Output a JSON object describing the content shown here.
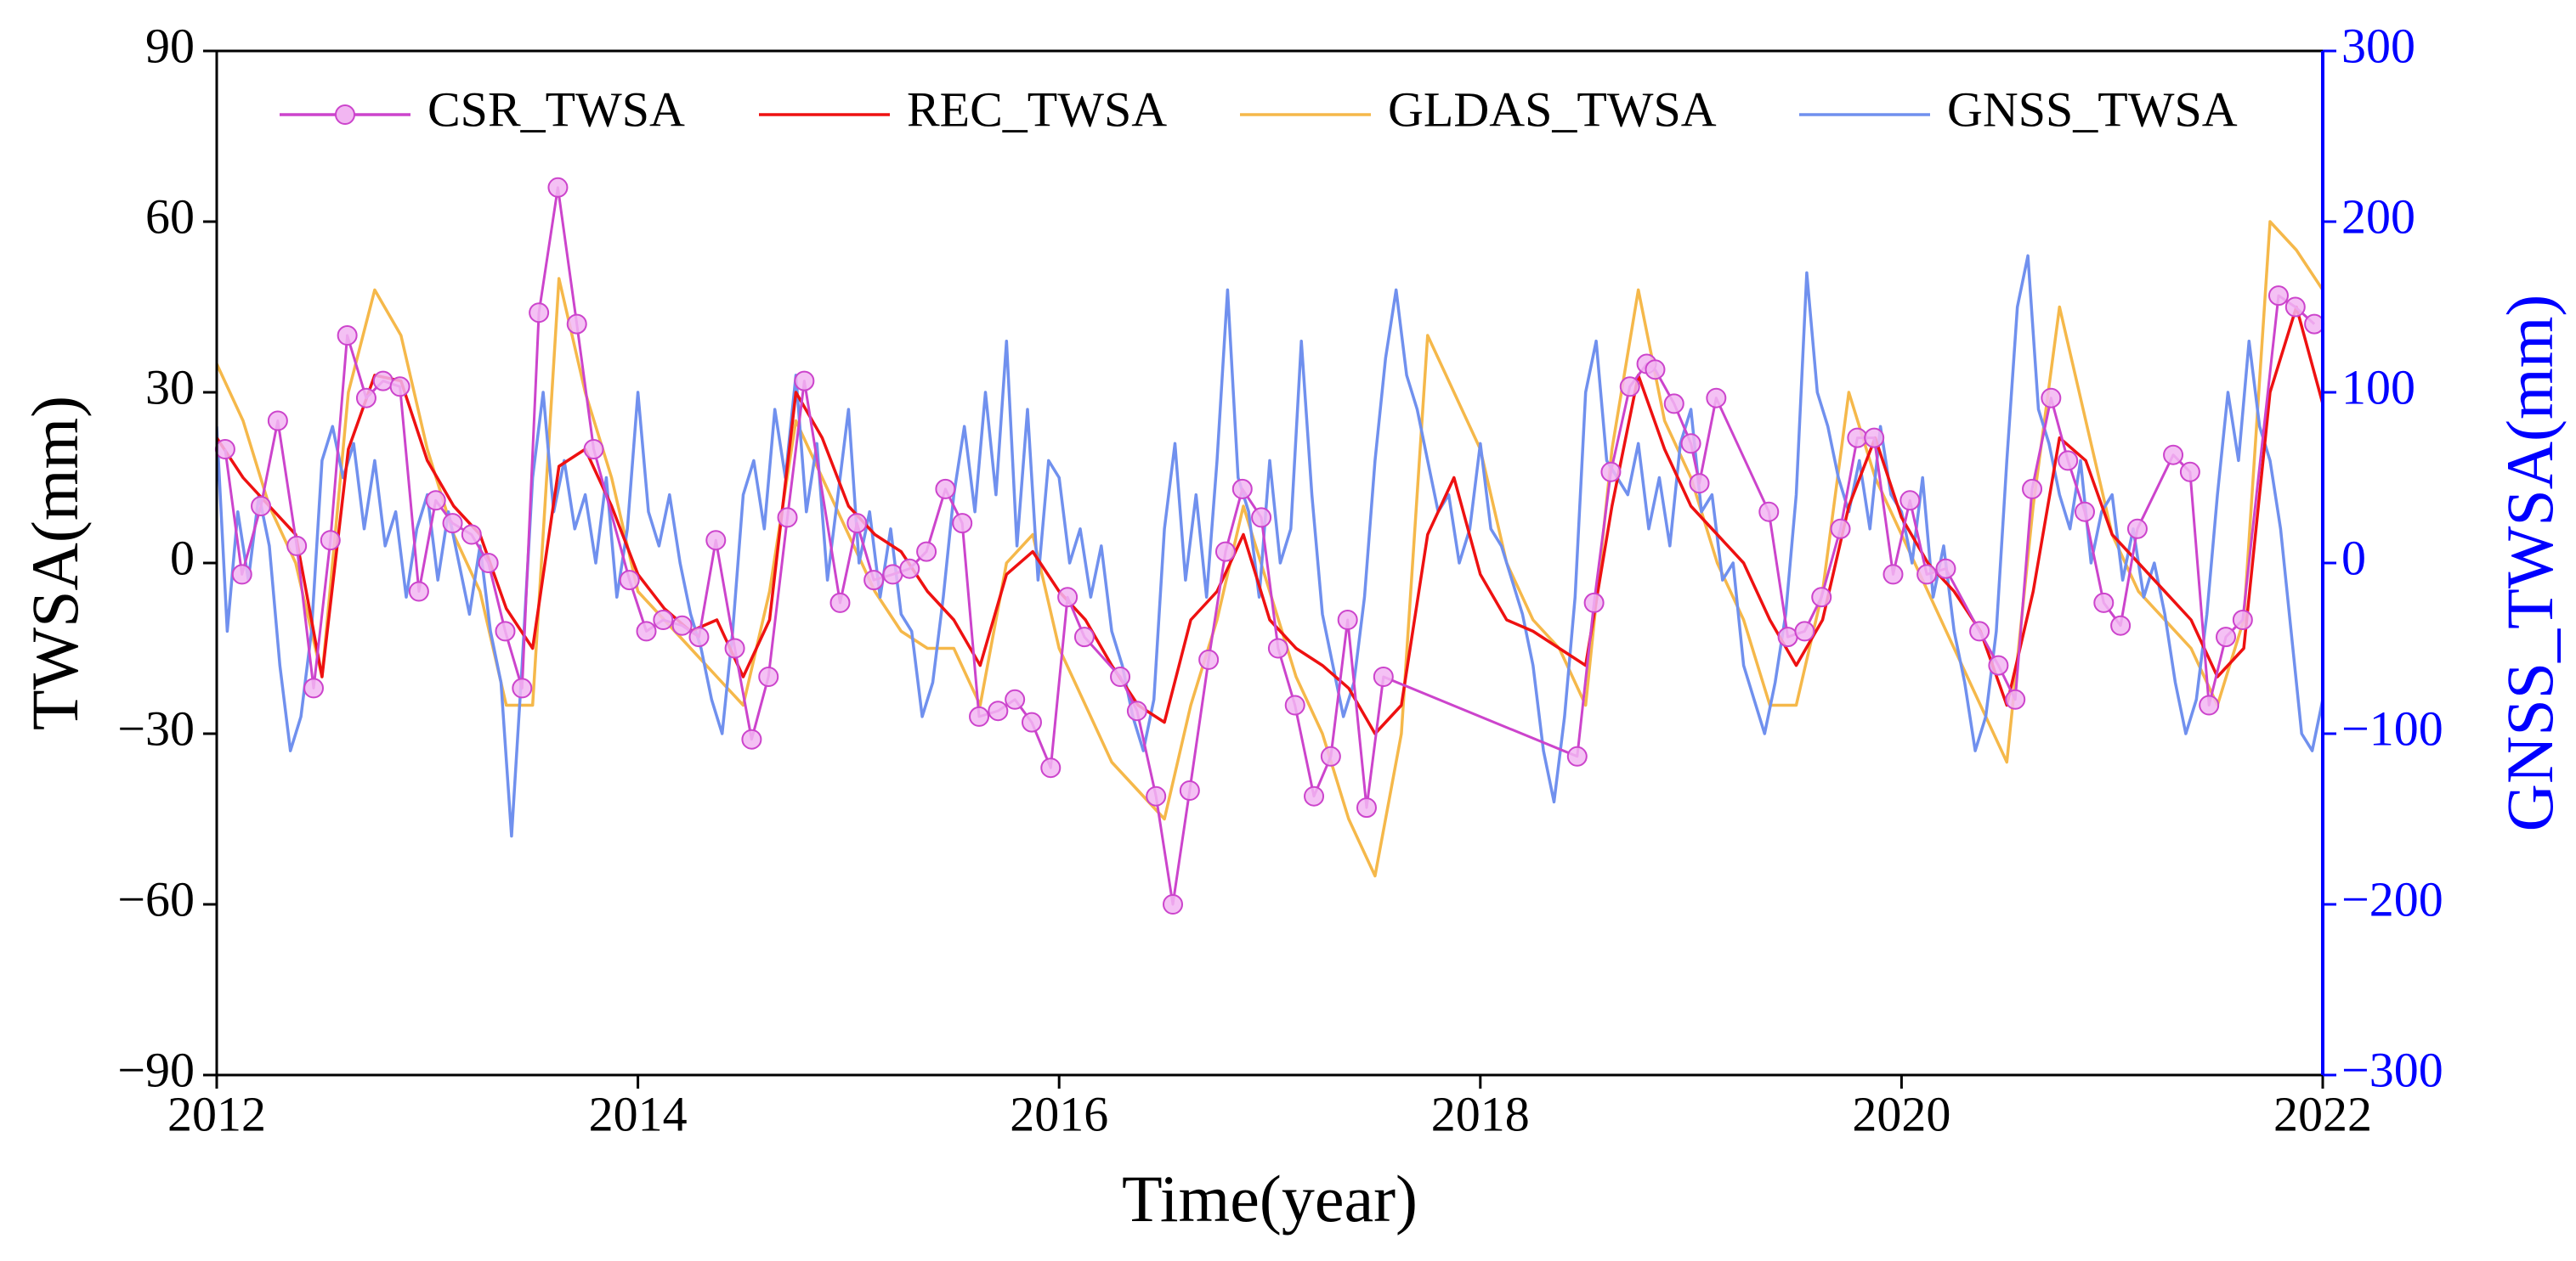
{
  "chart_data": {
    "type": "line",
    "xlabel": "Time(year)",
    "ylabel": "TWSA(mm)",
    "y2label": "GNSS_TWSA(mm)",
    "xlim": [
      2012,
      2022
    ],
    "xticks": [
      2012,
      2014,
      2016,
      2018,
      2020,
      2022
    ],
    "ylim": [
      -90,
      90
    ],
    "yticks": [
      {
        "value": -90,
        "label": "−90"
      },
      {
        "value": -60,
        "label": "−60"
      },
      {
        "value": -30,
        "label": "−30"
      },
      0,
      30,
      60,
      90
    ],
    "y2lim": [
      -300,
      300
    ],
    "y2ticks": [
      {
        "value": -300,
        "label": "−300"
      },
      {
        "value": -200,
        "label": "−200"
      },
      {
        "value": -100,
        "label": "−100"
      },
      0,
      100,
      200,
      300
    ],
    "y2color": "#0000ff",
    "legend": "top",
    "series": [
      {
        "name": "CSR_TWSA",
        "color": "#cc44cc",
        "marker": "circle",
        "marker_fill": "#f2b6f2",
        "x": [
          2012.04,
          2012.12,
          2012.21,
          2012.29,
          2012.38,
          2012.46,
          2012.54,
          2012.62,
          2012.71,
          2012.79,
          2012.87,
          2012.96,
          2013.04,
          2013.12,
          2013.21,
          2013.29,
          2013.37,
          2013.45,
          2013.53,
          2013.62,
          2013.71,
          2013.79,
          2013.96,
          2014.04,
          2014.12,
          2014.21,
          2014.29,
          2014.37,
          2014.46,
          2014.54,
          2014.62,
          2014.71,
          2014.79,
          2014.96,
          2015.04,
          2015.12,
          2015.21,
          2015.29,
          2015.37,
          2015.46,
          2015.54,
          2015.62,
          2015.71,
          2015.79,
          2015.87,
          2015.96,
          2016.04,
          2016.12,
          2016.29,
          2016.37,
          2016.46,
          2016.54,
          2016.62,
          2016.71,
          2016.79,
          2016.87,
          2016.96,
          2017.04,
          2017.12,
          2017.21,
          2017.29,
          2017.37,
          2017.46,
          2017.54,
          2018.46,
          2018.54,
          2018.62,
          2018.71,
          2018.79,
          2018.83,
          2018.92,
          2019.0,
          2019.04,
          2019.12,
          2019.37,
          2019.46,
          2019.54,
          2019.62,
          2019.71,
          2019.79,
          2019.87,
          2019.96,
          2020.04,
          2020.12,
          2020.21,
          2020.37,
          2020.46,
          2020.54,
          2020.62,
          2020.71,
          2020.79,
          2020.87,
          2020.96,
          2021.04,
          2021.12,
          2021.29,
          2021.37,
          2021.46,
          2021.54,
          2021.62,
          2021.79,
          2021.87,
          2021.96
        ],
        "values": [
          20,
          -2,
          10,
          25,
          3,
          -22,
          4,
          40,
          29,
          32,
          31,
          -5,
          11,
          7,
          5,
          0,
          -12,
          -22,
          44,
          66,
          42,
          20,
          -3,
          -12,
          -10,
          -11,
          -13,
          4,
          -15,
          -31,
          -20,
          8,
          32,
          -7,
          7,
          -3,
          -2,
          -1,
          2,
          13,
          7,
          -27,
          -26,
          -24,
          -28,
          -36,
          -6,
          -13,
          -20,
          -26,
          -41,
          -60,
          -40,
          -17,
          2,
          13,
          8,
          -15,
          -25,
          -41,
          -34,
          -10,
          -43,
          -20,
          -34,
          -7,
          16,
          31,
          35,
          34,
          28,
          21,
          14,
          29,
          9,
          -13,
          -12,
          -6,
          6,
          22,
          22,
          -2,
          11,
          -2,
          -1,
          -12,
          -18,
          -24,
          13,
          29,
          18,
          9,
          -7,
          -11,
          6,
          19,
          16,
          -25,
          -13,
          -10,
          47,
          45,
          42
        ]
      },
      {
        "name": "REC_TWSA",
        "color": "#ee1111",
        "x": [
          2012,
          2012.125,
          2012.25,
          2012.375,
          2012.5,
          2012.625,
          2012.75,
          2012.875,
          2013,
          2013.125,
          2013.25,
          2013.375,
          2013.5,
          2013.625,
          2013.75,
          2013.875,
          2014,
          2014.125,
          2014.25,
          2014.375,
          2014.5,
          2014.625,
          2014.75,
          2014.875,
          2015,
          2015.125,
          2015.25,
          2015.375,
          2015.5,
          2015.625,
          2015.75,
          2015.875,
          2016,
          2016.125,
          2016.25,
          2016.375,
          2016.5,
          2016.625,
          2016.75,
          2016.875,
          2017,
          2017.125,
          2017.25,
          2017.375,
          2017.5,
          2017.625,
          2017.75,
          2017.875,
          2018,
          2018.125,
          2018.25,
          2018.375,
          2018.5,
          2018.625,
          2018.75,
          2018.875,
          2019,
          2019.125,
          2019.25,
          2019.375,
          2019.5,
          2019.625,
          2019.75,
          2019.875,
          2020,
          2020.125,
          2020.25,
          2020.375,
          2020.5,
          2020.625,
          2020.75,
          2020.875,
          2021,
          2021.125,
          2021.25,
          2021.375,
          2021.5,
          2021.625,
          2021.75,
          2021.875,
          2022
        ],
        "values": [
          22,
          15,
          10,
          5,
          -20,
          20,
          33,
          32,
          18,
          10,
          5,
          -8,
          -15,
          17,
          20,
          10,
          -2,
          -8,
          -12,
          -10,
          -20,
          -10,
          30,
          22,
          10,
          5,
          2,
          -5,
          -10,
          -18,
          -2,
          2,
          -5,
          -10,
          -18,
          -25,
          -28,
          -10,
          -5,
          5,
          -10,
          -15,
          -18,
          -22,
          -30,
          -25,
          5,
          15,
          -2,
          -10,
          -12,
          -15,
          -18,
          10,
          33,
          20,
          10,
          5,
          0,
          -10,
          -18,
          -10,
          10,
          22,
          8,
          0,
          -5,
          -12,
          -25,
          -5,
          22,
          18,
          5,
          0,
          -5,
          -10,
          -20,
          -15,
          30,
          45,
          28
        ]
      },
      {
        "name": "GLDAS_TWSA",
        "color": "#f5b84a",
        "x": [
          2012,
          2012.125,
          2012.25,
          2012.375,
          2012.5,
          2012.625,
          2012.75,
          2012.875,
          2013,
          2013.125,
          2013.25,
          2013.375,
          2013.5,
          2013.625,
          2013.75,
          2013.875,
          2014,
          2014.125,
          2014.25,
          2014.375,
          2014.5,
          2014.625,
          2014.75,
          2014.875,
          2015,
          2015.125,
          2015.25,
          2015.375,
          2015.5,
          2015.625,
          2015.75,
          2015.875,
          2016,
          2016.125,
          2016.25,
          2016.375,
          2016.5,
          2016.625,
          2016.75,
          2016.875,
          2017,
          2017.125,
          2017.25,
          2017.375,
          2017.5,
          2017.625,
          2017.75,
          2017.875,
          2018,
          2018.125,
          2018.25,
          2018.375,
          2018.5,
          2018.625,
          2018.75,
          2018.875,
          2019,
          2019.125,
          2019.25,
          2019.375,
          2019.5,
          2019.625,
          2019.75,
          2019.875,
          2020,
          2020.125,
          2020.25,
          2020.375,
          2020.5,
          2020.625,
          2020.75,
          2020.875,
          2021,
          2021.125,
          2021.25,
          2021.375,
          2021.5,
          2021.625,
          2021.75,
          2021.875,
          2022
        ],
        "values": [
          35,
          25,
          10,
          0,
          -20,
          30,
          48,
          40,
          20,
          5,
          -5,
          -25,
          -25,
          50,
          30,
          15,
          -5,
          -10,
          -15,
          -20,
          -25,
          -5,
          25,
          15,
          5,
          -5,
          -12,
          -15,
          -15,
          -25,
          0,
          5,
          -15,
          -25,
          -35,
          -40,
          -45,
          -25,
          -10,
          10,
          -5,
          -20,
          -30,
          -45,
          -55,
          -30,
          40,
          30,
          20,
          0,
          -10,
          -15,
          -25,
          20,
          48,
          25,
          15,
          0,
          -10,
          -25,
          -25,
          -5,
          30,
          15,
          5,
          -5,
          -15,
          -25,
          -35,
          10,
          45,
          25,
          5,
          -5,
          -10,
          -15,
          -25,
          -10,
          60,
          55,
          48
        ]
      },
      {
        "name": "GNSS_TWSA",
        "color": "#7090ee",
        "axis": "y2",
        "x": [
          2012,
          2012.05,
          2012.1,
          2012.15,
          2012.2,
          2012.25,
          2012.3,
          2012.35,
          2012.4,
          2012.45,
          2012.5,
          2012.55,
          2012.6,
          2012.65,
          2012.7,
          2012.75,
          2012.8,
          2012.85,
          2012.9,
          2012.95,
          2013,
          2013.05,
          2013.1,
          2013.15,
          2013.2,
          2013.25,
          2013.3,
          2013.35,
          2013.4,
          2013.45,
          2013.5,
          2013.55,
          2013.6,
          2013.65,
          2013.7,
          2013.75,
          2013.8,
          2013.85,
          2013.9,
          2013.95,
          2014,
          2014.05,
          2014.1,
          2014.15,
          2014.2,
          2014.25,
          2014.3,
          2014.35,
          2014.4,
          2014.45,
          2014.5,
          2014.55,
          2014.6,
          2014.65,
          2014.7,
          2014.75,
          2014.8,
          2014.85,
          2014.9,
          2014.95,
          2015,
          2015.05,
          2015.1,
          2015.15,
          2015.2,
          2015.25,
          2015.3,
          2015.35,
          2015.4,
          2015.45,
          2015.5,
          2015.55,
          2015.6,
          2015.65,
          2015.7,
          2015.75,
          2015.8,
          2015.85,
          2015.9,
          2015.95,
          2016,
          2016.05,
          2016.1,
          2016.15,
          2016.2,
          2016.25,
          2016.3,
          2016.35,
          2016.4,
          2016.45,
          2016.5,
          2016.55,
          2016.6,
          2016.65,
          2016.7,
          2016.75,
          2016.8,
          2016.85,
          2016.9,
          2016.95,
          2017,
          2017.05,
          2017.1,
          2017.15,
          2017.2,
          2017.25,
          2017.3,
          2017.35,
          2017.4,
          2017.45,
          2017.5,
          2017.55,
          2017.6,
          2017.65,
          2017.7,
          2017.75,
          2017.8,
          2017.85,
          2017.9,
          2017.95,
          2018,
          2018.05,
          2018.1,
          2018.15,
          2018.2,
          2018.25,
          2018.3,
          2018.35,
          2018.4,
          2018.45,
          2018.5,
          2018.55,
          2018.6,
          2018.65,
          2018.7,
          2018.75,
          2018.8,
          2018.85,
          2018.9,
          2018.95,
          2019,
          2019.05,
          2019.1,
          2019.15,
          2019.2,
          2019.25,
          2019.3,
          2019.35,
          2019.4,
          2019.45,
          2019.5,
          2019.55,
          2019.6,
          2019.65,
          2019.7,
          2019.75,
          2019.8,
          2019.85,
          2019.9,
          2019.95,
          2020,
          2020.05,
          2020.1,
          2020.15,
          2020.2,
          2020.25,
          2020.3,
          2020.35,
          2020.4,
          2020.45,
          2020.5,
          2020.55,
          2020.6,
          2020.65,
          2020.7,
          2020.75,
          2020.8,
          2020.85,
          2020.9,
          2020.95,
          2021,
          2021.05,
          2021.1,
          2021.15,
          2021.2,
          2021.25,
          2021.3,
          2021.35,
          2021.4,
          2021.45,
          2021.5,
          2021.55,
          2021.6,
          2021.65,
          2021.7,
          2021.75,
          2021.8,
          2021.85,
          2021.9,
          2021.95,
          2022
        ],
        "values": [
          80,
          -40,
          30,
          -10,
          40,
          10,
          -60,
          -110,
          -90,
          -40,
          60,
          80,
          50,
          70,
          20,
          60,
          10,
          30,
          -20,
          20,
          40,
          -10,
          30,
          0,
          -30,
          10,
          -40,
          -70,
          -160,
          -60,
          50,
          100,
          30,
          60,
          20,
          40,
          0,
          50,
          -20,
          20,
          100,
          30,
          10,
          40,
          0,
          -30,
          -50,
          -80,
          -100,
          -40,
          40,
          60,
          20,
          90,
          50,
          110,
          30,
          70,
          -10,
          40,
          90,
          0,
          30,
          -20,
          20,
          -30,
          -40,
          -90,
          -70,
          -20,
          40,
          80,
          30,
          100,
          40,
          130,
          10,
          90,
          -10,
          60,
          50,
          0,
          20,
          -20,
          10,
          -40,
          -60,
          -90,
          -110,
          -80,
          20,
          70,
          -10,
          40,
          -20,
          60,
          160,
          50,
          30,
          -20,
          60,
          0,
          20,
          130,
          40,
          -30,
          -60,
          -90,
          -70,
          -20,
          60,
          120,
          160,
          110,
          90,
          60,
          30,
          40,
          0,
          20,
          70,
          20,
          10,
          -10,
          -30,
          -60,
          -110,
          -140,
          -90,
          -20,
          100,
          130,
          60,
          50,
          40,
          70,
          20,
          50,
          10,
          70,
          90,
          30,
          40,
          -10,
          0,
          -60,
          -80,
          -100,
          -70,
          -30,
          40,
          170,
          100,
          80,
          50,
          30,
          60,
          20,
          80,
          40,
          30,
          0,
          50,
          -20,
          10,
          -40,
          -70,
          -110,
          -90,
          -40,
          60,
          150,
          180,
          90,
          70,
          40,
          20,
          60,
          0,
          30,
          40,
          -10,
          20,
          -20,
          0,
          -30,
          -70,
          -100,
          -80,
          -30,
          40,
          100,
          60,
          130,
          80,
          60,
          20,
          -40,
          -100,
          -110,
          -80
        ]
      }
    ]
  }
}
